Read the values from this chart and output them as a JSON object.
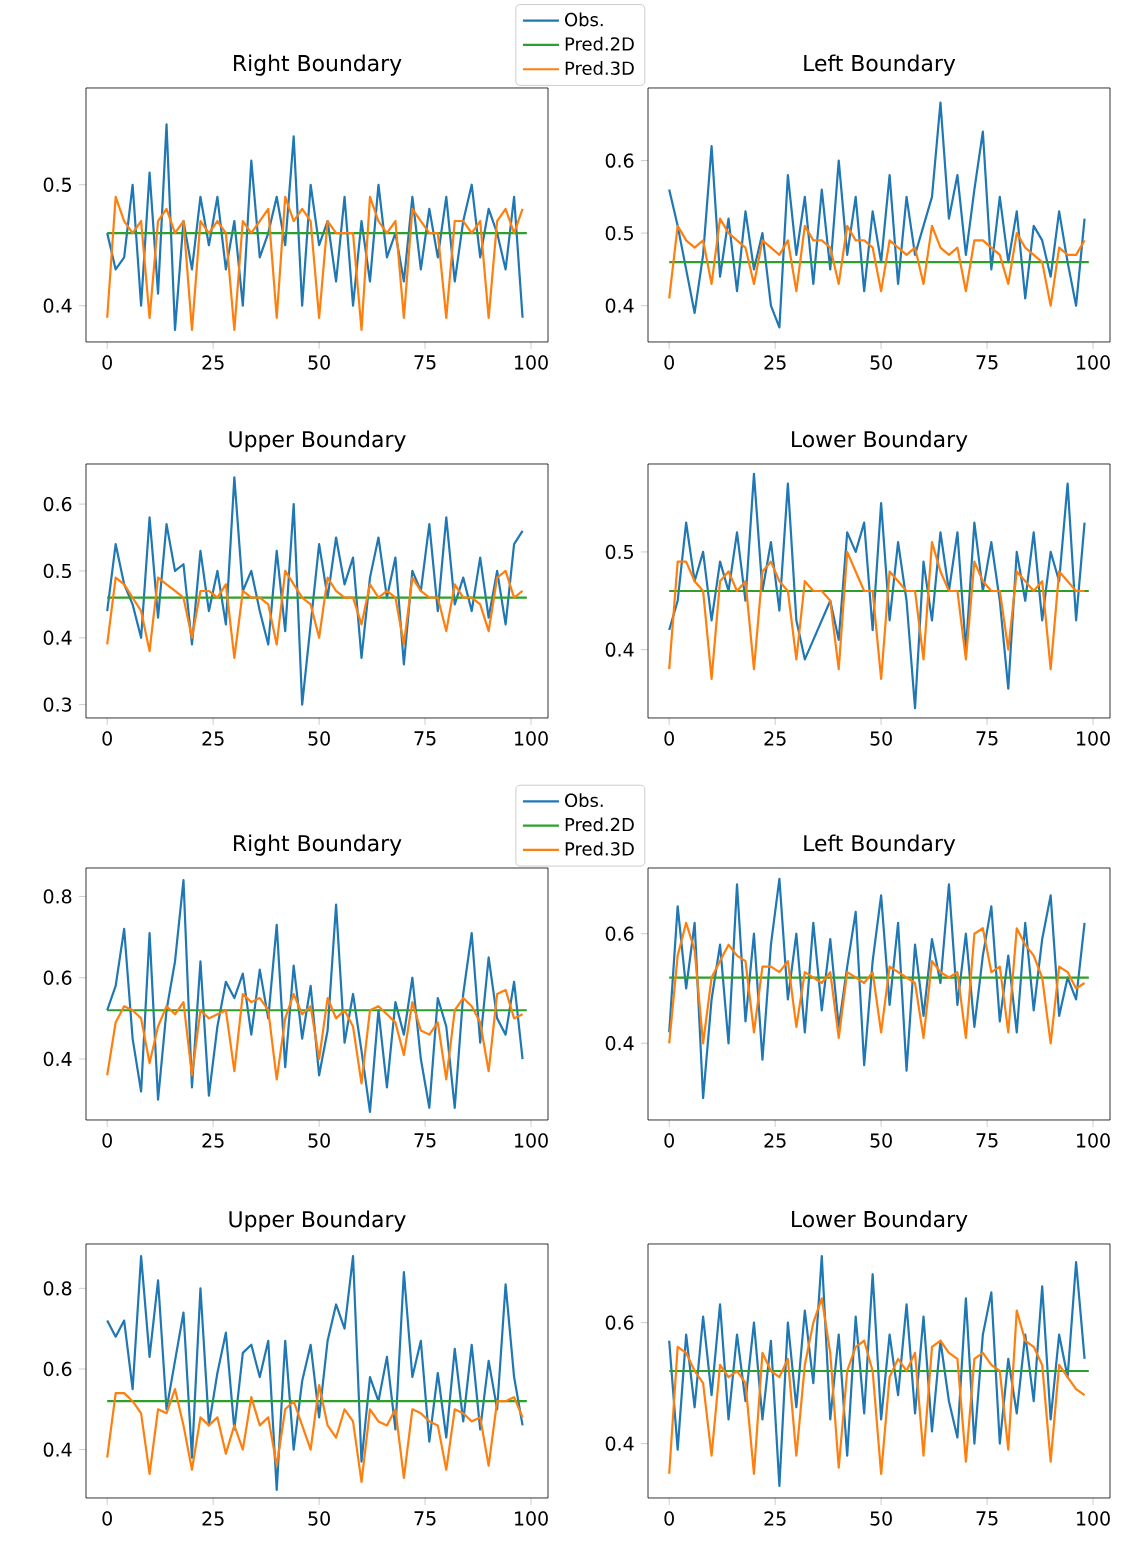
{
  "chart_data": [
    {
      "type": "line",
      "title": "Right Boundary",
      "xlim": [
        -5,
        104
      ],
      "xticks": [
        0,
        25,
        50,
        75,
        100
      ],
      "ylim": [
        0.37,
        0.58
      ],
      "yticks": [
        0.4,
        0.5
      ],
      "legend": "top right",
      "series": [
        {
          "name": "Obs.",
          "color": "#1f77b4",
          "x": [
            0,
            2,
            4,
            6,
            8,
            10,
            12,
            14,
            16,
            18,
            20,
            22,
            24,
            26,
            28,
            30,
            32,
            34,
            36,
            38,
            40,
            42,
            44,
            46,
            48,
            50,
            52,
            54,
            56,
            58,
            60,
            62,
            64,
            66,
            68,
            70,
            72,
            74,
            76,
            78,
            80,
            82,
            84,
            86,
            88,
            90,
            92,
            94,
            96,
            98
          ],
          "values": [
            0.46,
            0.43,
            0.44,
            0.5,
            0.4,
            0.51,
            0.41,
            0.55,
            0.38,
            0.47,
            0.43,
            0.49,
            0.45,
            0.49,
            0.43,
            0.47,
            0.4,
            0.52,
            0.44,
            0.46,
            0.49,
            0.45,
            0.54,
            0.4,
            0.5,
            0.45,
            0.47,
            0.42,
            0.49,
            0.4,
            0.47,
            0.42,
            0.5,
            0.44,
            0.46,
            0.42,
            0.49,
            0.43,
            0.48,
            0.44,
            0.49,
            0.42,
            0.47,
            0.5,
            0.44,
            0.48,
            0.46,
            0.43,
            0.49,
            0.39
          ]
        },
        {
          "name": "Pred.2D",
          "color": "#2ca02c",
          "x": [
            0,
            25,
            50,
            75,
            99
          ],
          "values": [
            0.46,
            0.46,
            0.46,
            0.46,
            0.46
          ]
        },
        {
          "name": "Pred.3D",
          "color": "#ff7f0e",
          "x": [
            0,
            2,
            4,
            6,
            8,
            10,
            12,
            14,
            16,
            18,
            20,
            22,
            24,
            26,
            28,
            30,
            32,
            34,
            36,
            38,
            40,
            42,
            44,
            46,
            48,
            50,
            52,
            54,
            56,
            58,
            60,
            62,
            64,
            66,
            68,
            70,
            72,
            74,
            76,
            78,
            80,
            82,
            84,
            86,
            88,
            90,
            92,
            94,
            96,
            98
          ],
          "values": [
            0.39,
            0.49,
            0.47,
            0.46,
            0.47,
            0.39,
            0.47,
            0.48,
            0.46,
            0.47,
            0.38,
            0.47,
            0.46,
            0.47,
            0.46,
            0.38,
            0.47,
            0.46,
            0.47,
            0.48,
            0.39,
            0.49,
            0.47,
            0.48,
            0.47,
            0.39,
            0.47,
            0.46,
            0.46,
            0.46,
            0.38,
            0.49,
            0.47,
            0.46,
            0.47,
            0.39,
            0.48,
            0.47,
            0.46,
            0.46,
            0.39,
            0.47,
            0.47,
            0.46,
            0.47,
            0.39,
            0.47,
            0.48,
            0.46,
            0.48
          ]
        }
      ]
    },
    {
      "type": "line",
      "title": "Left Boundary",
      "xlim": [
        -5,
        104
      ],
      "xticks": [
        0,
        25,
        50,
        75,
        100
      ],
      "ylim": [
        0.35,
        0.7
      ],
      "yticks": [
        0.4,
        0.5,
        0.6
      ],
      "series": [
        {
          "color": "#1f77b4",
          "x": [
            0,
            2,
            4,
            6,
            8,
            10,
            12,
            14,
            16,
            18,
            20,
            22,
            24,
            26,
            28,
            30,
            32,
            34,
            36,
            38,
            40,
            42,
            44,
            46,
            48,
            50,
            52,
            54,
            56,
            58,
            60,
            62,
            64,
            66,
            68,
            70,
            72,
            74,
            76,
            78,
            80,
            82,
            84,
            86,
            88,
            90,
            92,
            94,
            96,
            98
          ],
          "values": [
            0.56,
            0.51,
            0.45,
            0.39,
            0.47,
            0.62,
            0.44,
            0.52,
            0.42,
            0.53,
            0.45,
            0.5,
            0.4,
            0.37,
            0.58,
            0.47,
            0.55,
            0.43,
            0.56,
            0.45,
            0.6,
            0.47,
            0.55,
            0.42,
            0.53,
            0.46,
            0.58,
            0.43,
            0.55,
            0.47,
            0.51,
            0.55,
            0.68,
            0.52,
            0.58,
            0.47,
            0.56,
            0.64,
            0.45,
            0.55,
            0.46,
            0.53,
            0.41,
            0.51,
            0.49,
            0.44,
            0.53,
            0.46,
            0.4,
            0.52
          ]
        },
        {
          "color": "#2ca02c",
          "x": [
            0,
            25,
            50,
            75,
            99
          ],
          "values": [
            0.46,
            0.46,
            0.46,
            0.46,
            0.46
          ]
        },
        {
          "color": "#ff7f0e",
          "x": [
            0,
            2,
            4,
            6,
            8,
            10,
            12,
            14,
            16,
            18,
            20,
            22,
            24,
            26,
            28,
            30,
            32,
            34,
            36,
            38,
            40,
            42,
            44,
            46,
            48,
            50,
            52,
            54,
            56,
            58,
            60,
            62,
            64,
            66,
            68,
            70,
            72,
            74,
            76,
            78,
            80,
            82,
            84,
            86,
            88,
            90,
            92,
            94,
            96,
            98
          ],
          "values": [
            0.41,
            0.51,
            0.49,
            0.48,
            0.49,
            0.43,
            0.52,
            0.5,
            0.49,
            0.48,
            0.43,
            0.49,
            0.48,
            0.47,
            0.49,
            0.42,
            0.51,
            0.49,
            0.49,
            0.48,
            0.43,
            0.51,
            0.49,
            0.49,
            0.48,
            0.42,
            0.49,
            0.48,
            0.47,
            0.48,
            0.43,
            0.51,
            0.48,
            0.47,
            0.48,
            0.42,
            0.49,
            0.49,
            0.48,
            0.47,
            0.43,
            0.5,
            0.48,
            0.47,
            0.46,
            0.4,
            0.48,
            0.47,
            0.47,
            0.49
          ]
        }
      ]
    },
    {
      "type": "line",
      "title": "Upper Boundary",
      "xlim": [
        -5,
        104
      ],
      "xticks": [
        0,
        25,
        50,
        75,
        100
      ],
      "ylim": [
        0.28,
        0.66
      ],
      "yticks": [
        0.3,
        0.4,
        0.5,
        0.6
      ],
      "series": [
        {
          "color": "#1f77b4",
          "x": [
            0,
            2,
            4,
            6,
            8,
            10,
            12,
            14,
            16,
            18,
            20,
            22,
            24,
            26,
            28,
            30,
            32,
            34,
            36,
            38,
            40,
            42,
            44,
            46,
            48,
            50,
            52,
            54,
            56,
            58,
            60,
            62,
            64,
            66,
            68,
            70,
            72,
            74,
            76,
            78,
            80,
            82,
            84,
            86,
            88,
            90,
            92,
            94,
            96,
            98
          ],
          "values": [
            0.44,
            0.54,
            0.48,
            0.45,
            0.4,
            0.58,
            0.43,
            0.57,
            0.5,
            0.51,
            0.39,
            0.53,
            0.44,
            0.5,
            0.42,
            0.64,
            0.47,
            0.5,
            0.44,
            0.39,
            0.53,
            0.41,
            0.6,
            0.3,
            0.42,
            0.54,
            0.46,
            0.55,
            0.48,
            0.52,
            0.37,
            0.49,
            0.55,
            0.46,
            0.52,
            0.36,
            0.5,
            0.47,
            0.57,
            0.44,
            0.58,
            0.45,
            0.49,
            0.44,
            0.52,
            0.43,
            0.5,
            0.42,
            0.54,
            0.56
          ]
        },
        {
          "color": "#2ca02c",
          "x": [
            0,
            25,
            50,
            75,
            99
          ],
          "values": [
            0.46,
            0.46,
            0.46,
            0.46,
            0.46
          ]
        },
        {
          "color": "#ff7f0e",
          "x": [
            0,
            2,
            4,
            6,
            8,
            10,
            12,
            14,
            16,
            18,
            20,
            22,
            24,
            26,
            28,
            30,
            32,
            34,
            36,
            38,
            40,
            42,
            44,
            46,
            48,
            50,
            52,
            54,
            56,
            58,
            60,
            62,
            64,
            66,
            68,
            70,
            72,
            74,
            76,
            78,
            80,
            82,
            84,
            86,
            88,
            90,
            92,
            94,
            96,
            98
          ],
          "values": [
            0.39,
            0.49,
            0.48,
            0.46,
            0.44,
            0.38,
            0.49,
            0.48,
            0.47,
            0.46,
            0.4,
            0.47,
            0.47,
            0.46,
            0.48,
            0.37,
            0.47,
            0.46,
            0.46,
            0.45,
            0.39,
            0.5,
            0.48,
            0.46,
            0.45,
            0.4,
            0.49,
            0.47,
            0.46,
            0.46,
            0.42,
            0.48,
            0.46,
            0.47,
            0.46,
            0.39,
            0.49,
            0.47,
            0.46,
            0.46,
            0.41,
            0.48,
            0.46,
            0.46,
            0.45,
            0.41,
            0.49,
            0.5,
            0.46,
            0.47
          ]
        }
      ]
    },
    {
      "type": "line",
      "title": "Lower Boundary",
      "xlim": [
        -5,
        104
      ],
      "xticks": [
        0,
        25,
        50,
        75,
        100
      ],
      "ylim": [
        0.33,
        0.59
      ],
      "yticks": [
        0.4,
        0.5
      ],
      "series": [
        {
          "color": "#1f77b4",
          "x": [
            0,
            2,
            4,
            6,
            8,
            10,
            12,
            14,
            16,
            18,
            20,
            22,
            24,
            26,
            28,
            30,
            32,
            34,
            36,
            38,
            40,
            42,
            44,
            46,
            48,
            50,
            52,
            54,
            56,
            58,
            60,
            62,
            64,
            66,
            68,
            70,
            72,
            74,
            76,
            78,
            80,
            82,
            84,
            86,
            88,
            90,
            92,
            94,
            96,
            98
          ],
          "values": [
            0.42,
            0.45,
            0.53,
            0.47,
            0.5,
            0.43,
            0.49,
            0.46,
            0.52,
            0.45,
            0.58,
            0.46,
            0.51,
            0.44,
            0.57,
            0.43,
            0.39,
            0.41,
            0.43,
            0.45,
            0.41,
            0.52,
            0.5,
            0.53,
            0.42,
            0.55,
            0.43,
            0.51,
            0.45,
            0.34,
            0.49,
            0.43,
            0.52,
            0.46,
            0.52,
            0.4,
            0.53,
            0.46,
            0.51,
            0.45,
            0.36,
            0.5,
            0.45,
            0.52,
            0.43,
            0.5,
            0.47,
            0.57,
            0.43,
            0.53
          ]
        },
        {
          "color": "#2ca02c",
          "x": [
            0,
            25,
            50,
            75,
            99
          ],
          "values": [
            0.46,
            0.46,
            0.46,
            0.46,
            0.46
          ]
        },
        {
          "color": "#ff7f0e",
          "x": [
            0,
            2,
            4,
            6,
            8,
            10,
            12,
            14,
            16,
            18,
            20,
            22,
            24,
            26,
            28,
            30,
            32,
            34,
            36,
            38,
            40,
            42,
            44,
            46,
            48,
            50,
            52,
            54,
            56,
            58,
            60,
            62,
            64,
            66,
            68,
            70,
            72,
            74,
            76,
            78,
            80,
            82,
            84,
            86,
            88,
            90,
            92,
            94,
            96,
            98
          ],
          "values": [
            0.38,
            0.49,
            0.49,
            0.47,
            0.46,
            0.37,
            0.47,
            0.48,
            0.46,
            0.47,
            0.38,
            0.48,
            0.49,
            0.47,
            0.46,
            0.39,
            0.47,
            0.46,
            0.46,
            0.45,
            0.38,
            0.5,
            0.48,
            0.46,
            0.46,
            0.37,
            0.48,
            0.47,
            0.46,
            0.46,
            0.39,
            0.51,
            0.48,
            0.46,
            0.46,
            0.39,
            0.49,
            0.47,
            0.46,
            0.46,
            0.4,
            0.48,
            0.47,
            0.46,
            0.47,
            0.38,
            0.48,
            0.47,
            0.46,
            0.46
          ]
        }
      ]
    },
    {
      "type": "line",
      "title": "Right Boundary",
      "xlim": [
        -5,
        104
      ],
      "xticks": [
        0,
        25,
        50,
        75,
        100
      ],
      "ylim": [
        0.25,
        0.87
      ],
      "yticks": [
        0.4,
        0.6,
        0.8
      ],
      "legend": "top right",
      "series": [
        {
          "name": "Obs.",
          "color": "#1f77b4",
          "x": [
            0,
            2,
            4,
            6,
            8,
            10,
            12,
            14,
            16,
            18,
            20,
            22,
            24,
            26,
            28,
            30,
            32,
            34,
            36,
            38,
            40,
            42,
            44,
            46,
            48,
            50,
            52,
            54,
            56,
            58,
            60,
            62,
            64,
            66,
            68,
            70,
            72,
            74,
            76,
            78,
            80,
            82,
            84,
            86,
            88,
            90,
            92,
            94,
            96,
            98
          ],
          "values": [
            0.52,
            0.58,
            0.72,
            0.45,
            0.32,
            0.71,
            0.3,
            0.52,
            0.64,
            0.84,
            0.33,
            0.64,
            0.31,
            0.48,
            0.59,
            0.55,
            0.61,
            0.46,
            0.62,
            0.5,
            0.73,
            0.38,
            0.63,
            0.45,
            0.58,
            0.36,
            0.47,
            0.78,
            0.44,
            0.56,
            0.42,
            0.27,
            0.52,
            0.33,
            0.54,
            0.46,
            0.6,
            0.4,
            0.28,
            0.55,
            0.48,
            0.28,
            0.56,
            0.71,
            0.44,
            0.65,
            0.5,
            0.46,
            0.59,
            0.4
          ]
        },
        {
          "name": "Pred.2D",
          "color": "#2ca02c",
          "x": [
            0,
            25,
            50,
            75,
            99
          ],
          "values": [
            0.52,
            0.52,
            0.52,
            0.52,
            0.52
          ]
        },
        {
          "name": "Pred.3D",
          "color": "#ff7f0e",
          "x": [
            0,
            2,
            4,
            6,
            8,
            10,
            12,
            14,
            16,
            18,
            20,
            22,
            24,
            26,
            28,
            30,
            32,
            34,
            36,
            38,
            40,
            42,
            44,
            46,
            48,
            50,
            52,
            54,
            56,
            58,
            60,
            62,
            64,
            66,
            68,
            70,
            72,
            74,
            76,
            78,
            80,
            82,
            84,
            86,
            88,
            90,
            92,
            94,
            96,
            98
          ],
          "values": [
            0.36,
            0.49,
            0.53,
            0.52,
            0.5,
            0.39,
            0.48,
            0.53,
            0.51,
            0.54,
            0.36,
            0.52,
            0.5,
            0.51,
            0.52,
            0.37,
            0.56,
            0.54,
            0.55,
            0.52,
            0.35,
            0.5,
            0.56,
            0.51,
            0.53,
            0.4,
            0.55,
            0.5,
            0.52,
            0.48,
            0.34,
            0.52,
            0.53,
            0.51,
            0.49,
            0.41,
            0.54,
            0.47,
            0.46,
            0.49,
            0.35,
            0.52,
            0.55,
            0.53,
            0.49,
            0.37,
            0.56,
            0.57,
            0.5,
            0.51
          ]
        }
      ]
    },
    {
      "type": "line",
      "title": "Left Boundary",
      "xlim": [
        -5,
        104
      ],
      "xticks": [
        0,
        25,
        50,
        75,
        100
      ],
      "ylim": [
        0.26,
        0.72
      ],
      "yticks": [
        0.4,
        0.6
      ],
      "series": [
        {
          "color": "#1f77b4",
          "x": [
            0,
            2,
            4,
            6,
            8,
            10,
            12,
            14,
            16,
            18,
            20,
            22,
            24,
            26,
            28,
            30,
            32,
            34,
            36,
            38,
            40,
            42,
            44,
            46,
            48,
            50,
            52,
            54,
            56,
            58,
            60,
            62,
            64,
            66,
            68,
            70,
            72,
            74,
            76,
            78,
            80,
            82,
            84,
            86,
            88,
            90,
            92,
            94,
            96,
            98
          ],
          "values": [
            0.42,
            0.65,
            0.5,
            0.62,
            0.3,
            0.48,
            0.58,
            0.4,
            0.69,
            0.44,
            0.6,
            0.37,
            0.58,
            0.7,
            0.48,
            0.6,
            0.42,
            0.62,
            0.46,
            0.59,
            0.43,
            0.54,
            0.64,
            0.36,
            0.55,
            0.67,
            0.47,
            0.62,
            0.35,
            0.58,
            0.45,
            0.59,
            0.51,
            0.69,
            0.47,
            0.6,
            0.43,
            0.56,
            0.65,
            0.44,
            0.56,
            0.42,
            0.62,
            0.46,
            0.59,
            0.67,
            0.45,
            0.52,
            0.48,
            0.62
          ]
        },
        {
          "color": "#2ca02c",
          "x": [
            0,
            25,
            50,
            75,
            99
          ],
          "values": [
            0.52,
            0.52,
            0.52,
            0.52,
            0.52
          ]
        },
        {
          "color": "#ff7f0e",
          "x": [
            0,
            2,
            4,
            6,
            8,
            10,
            12,
            14,
            16,
            18,
            20,
            22,
            24,
            26,
            28,
            30,
            32,
            34,
            36,
            38,
            40,
            42,
            44,
            46,
            48,
            50,
            52,
            54,
            56,
            58,
            60,
            62,
            64,
            66,
            68,
            70,
            72,
            74,
            76,
            78,
            80,
            82,
            84,
            86,
            88,
            90,
            92,
            94,
            96,
            98
          ],
          "values": [
            0.4,
            0.56,
            0.62,
            0.57,
            0.4,
            0.52,
            0.55,
            0.58,
            0.56,
            0.55,
            0.42,
            0.54,
            0.54,
            0.53,
            0.55,
            0.43,
            0.53,
            0.52,
            0.51,
            0.53,
            0.41,
            0.53,
            0.52,
            0.51,
            0.53,
            0.42,
            0.54,
            0.53,
            0.52,
            0.51,
            0.41,
            0.55,
            0.53,
            0.52,
            0.53,
            0.41,
            0.6,
            0.61,
            0.53,
            0.54,
            0.42,
            0.61,
            0.58,
            0.56,
            0.52,
            0.4,
            0.54,
            0.53,
            0.5,
            0.51
          ]
        }
      ]
    },
    {
      "type": "line",
      "title": "Upper Boundary",
      "xlim": [
        -5,
        104
      ],
      "xticks": [
        0,
        25,
        50,
        75,
        100
      ],
      "ylim": [
        0.28,
        0.91
      ],
      "yticks": [
        0.4,
        0.6,
        0.8
      ],
      "series": [
        {
          "color": "#1f77b4",
          "x": [
            0,
            2,
            4,
            6,
            8,
            10,
            12,
            14,
            16,
            18,
            20,
            22,
            24,
            26,
            28,
            30,
            32,
            34,
            36,
            38,
            40,
            42,
            44,
            46,
            48,
            50,
            52,
            54,
            56,
            58,
            60,
            62,
            64,
            66,
            68,
            70,
            72,
            74,
            76,
            78,
            80,
            82,
            84,
            86,
            88,
            90,
            92,
            94,
            96,
            98
          ],
          "values": [
            0.72,
            0.68,
            0.72,
            0.55,
            0.88,
            0.63,
            0.82,
            0.5,
            0.62,
            0.74,
            0.38,
            0.8,
            0.46,
            0.59,
            0.69,
            0.45,
            0.64,
            0.66,
            0.58,
            0.67,
            0.3,
            0.67,
            0.4,
            0.57,
            0.66,
            0.48,
            0.67,
            0.76,
            0.7,
            0.88,
            0.37,
            0.58,
            0.52,
            0.63,
            0.45,
            0.84,
            0.58,
            0.67,
            0.42,
            0.59,
            0.43,
            0.65,
            0.47,
            0.66,
            0.45,
            0.62,
            0.5,
            0.81,
            0.58,
            0.46
          ]
        },
        {
          "color": "#2ca02c",
          "x": [
            0,
            25,
            50,
            75,
            99
          ],
          "values": [
            0.52,
            0.52,
            0.52,
            0.52,
            0.52
          ]
        },
        {
          "color": "#ff7f0e",
          "x": [
            0,
            2,
            4,
            6,
            8,
            10,
            12,
            14,
            16,
            18,
            20,
            22,
            24,
            26,
            28,
            30,
            32,
            34,
            36,
            38,
            40,
            42,
            44,
            46,
            48,
            50,
            52,
            54,
            56,
            58,
            60,
            62,
            64,
            66,
            68,
            70,
            72,
            74,
            76,
            78,
            80,
            82,
            84,
            86,
            88,
            90,
            92,
            94,
            96,
            98
          ],
          "values": [
            0.38,
            0.54,
            0.54,
            0.52,
            0.49,
            0.34,
            0.5,
            0.49,
            0.55,
            0.46,
            0.35,
            0.48,
            0.46,
            0.48,
            0.39,
            0.46,
            0.4,
            0.53,
            0.46,
            0.48,
            0.36,
            0.5,
            0.52,
            0.46,
            0.4,
            0.56,
            0.46,
            0.43,
            0.5,
            0.47,
            0.32,
            0.5,
            0.47,
            0.46,
            0.5,
            0.33,
            0.5,
            0.49,
            0.47,
            0.46,
            0.35,
            0.5,
            0.49,
            0.47,
            0.48,
            0.36,
            0.52,
            0.52,
            0.53,
            0.48
          ]
        }
      ]
    },
    {
      "type": "line",
      "title": "Lower Boundary",
      "xlim": [
        -5,
        104
      ],
      "xticks": [
        0,
        25,
        50,
        75,
        100
      ],
      "ylim": [
        0.31,
        0.73
      ],
      "yticks": [
        0.4,
        0.6
      ],
      "series": [
        {
          "color": "#1f77b4",
          "x": [
            0,
            2,
            4,
            6,
            8,
            10,
            12,
            14,
            16,
            18,
            20,
            22,
            24,
            26,
            28,
            30,
            32,
            34,
            36,
            38,
            40,
            42,
            44,
            46,
            48,
            50,
            52,
            54,
            56,
            58,
            60,
            62,
            64,
            66,
            68,
            70,
            72,
            74,
            76,
            78,
            80,
            82,
            84,
            86,
            88,
            90,
            92,
            94,
            96,
            98
          ],
          "values": [
            0.57,
            0.39,
            0.58,
            0.46,
            0.61,
            0.48,
            0.63,
            0.44,
            0.58,
            0.47,
            0.6,
            0.44,
            0.57,
            0.33,
            0.6,
            0.46,
            0.62,
            0.5,
            0.71,
            0.44,
            0.58,
            0.38,
            0.61,
            0.45,
            0.68,
            0.44,
            0.58,
            0.48,
            0.63,
            0.45,
            0.61,
            0.42,
            0.57,
            0.47,
            0.41,
            0.64,
            0.4,
            0.58,
            0.65,
            0.4,
            0.54,
            0.45,
            0.58,
            0.47,
            0.66,
            0.44,
            0.58,
            0.51,
            0.7,
            0.54
          ]
        },
        {
          "color": "#2ca02c",
          "x": [
            0,
            25,
            50,
            75,
            99
          ],
          "values": [
            0.52,
            0.52,
            0.52,
            0.52,
            0.52
          ]
        },
        {
          "color": "#ff7f0e",
          "x": [
            0,
            2,
            4,
            6,
            8,
            10,
            12,
            14,
            16,
            18,
            20,
            22,
            24,
            26,
            28,
            30,
            32,
            34,
            36,
            38,
            40,
            42,
            44,
            46,
            48,
            50,
            52,
            54,
            56,
            58,
            60,
            62,
            64,
            66,
            68,
            70,
            72,
            74,
            76,
            78,
            80,
            82,
            84,
            86,
            88,
            90,
            92,
            94,
            96,
            98
          ],
          "values": [
            0.35,
            0.56,
            0.55,
            0.52,
            0.5,
            0.38,
            0.53,
            0.51,
            0.52,
            0.5,
            0.35,
            0.55,
            0.52,
            0.51,
            0.54,
            0.38,
            0.53,
            0.6,
            0.64,
            0.55,
            0.36,
            0.52,
            0.56,
            0.57,
            0.52,
            0.35,
            0.51,
            0.54,
            0.52,
            0.55,
            0.38,
            0.56,
            0.57,
            0.55,
            0.54,
            0.37,
            0.54,
            0.55,
            0.53,
            0.52,
            0.39,
            0.62,
            0.57,
            0.56,
            0.53,
            0.37,
            0.53,
            0.51,
            0.49,
            0.48
          ]
        }
      ]
    }
  ]
}
